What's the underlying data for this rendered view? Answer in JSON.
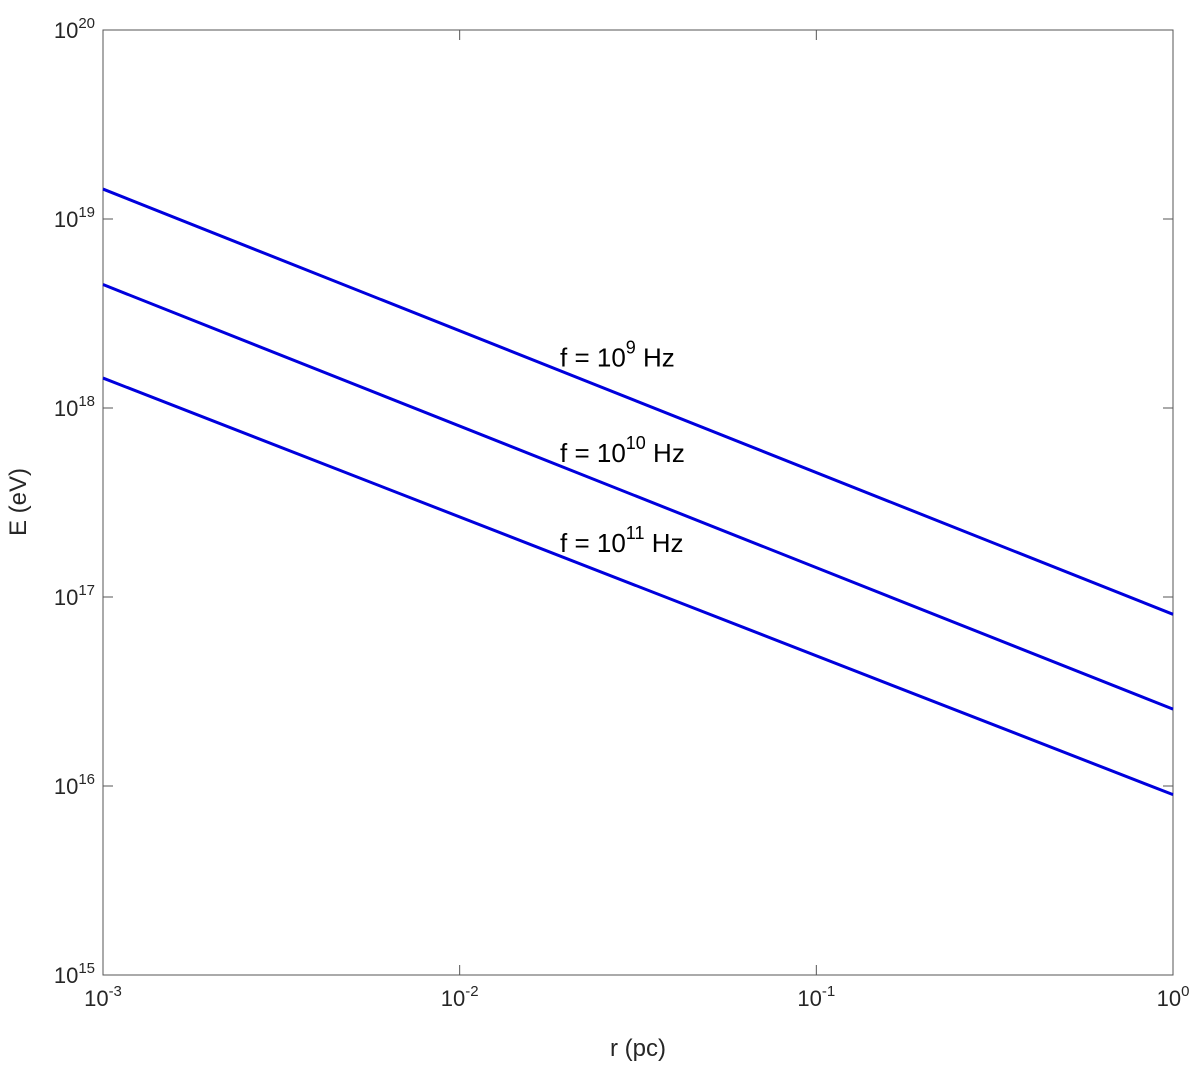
{
  "chart_data": {
    "type": "line",
    "xlabel": "r (pc)",
    "ylabel": "E (eV)",
    "xscale": "log",
    "yscale": "log",
    "xlim": [
      0.001,
      1
    ],
    "ylim": [
      1000000000000000.0,
      1e+20
    ],
    "xticks": [
      {
        "value": 0.001,
        "label": {
          "base": "10",
          "exp": "-3"
        }
      },
      {
        "value": 0.01,
        "label": {
          "base": "10",
          "exp": "-2"
        }
      },
      {
        "value": 0.1,
        "label": {
          "base": "10",
          "exp": "-1"
        }
      },
      {
        "value": 1,
        "label": {
          "base": "10",
          "exp": "0"
        }
      }
    ],
    "yticks": [
      {
        "value": 1000000000000000.0,
        "label": {
          "base": "10",
          "exp": "15"
        }
      },
      {
        "value": 1e+16,
        "label": {
          "base": "10",
          "exp": "16"
        }
      },
      {
        "value": 1e+17,
        "label": {
          "base": "10",
          "exp": "17"
        }
      },
      {
        "value": 1e+18,
        "label": {
          "base": "10",
          "exp": "18"
        }
      },
      {
        "value": 1e+19,
        "label": {
          "base": "10",
          "exp": "19"
        }
      },
      {
        "value": 1e+20,
        "label": {
          "base": "10",
          "exp": "20"
        }
      }
    ],
    "grid": false,
    "series": [
      {
        "label": [
          "f = 10",
          "9",
          " Hz"
        ],
        "color": "#0000dd",
        "x": [
          0.001,
          1
        ],
        "values": [
          1.44e+19,
          8.1e+16
        ]
      },
      {
        "label": [
          "f = 10",
          "10",
          " Hz"
        ],
        "color": "#0000dd",
        "x": [
          0.001,
          1
        ],
        "values": [
          4.5e+18,
          2.55e+16
        ]
      },
      {
        "label": [
          "f = 10",
          "11",
          " Hz"
        ],
        "color": "#0000dd",
        "x": [
          0.001,
          1
        ],
        "values": [
          1.44e+18,
          9000000000000000.0
        ]
      }
    ]
  }
}
